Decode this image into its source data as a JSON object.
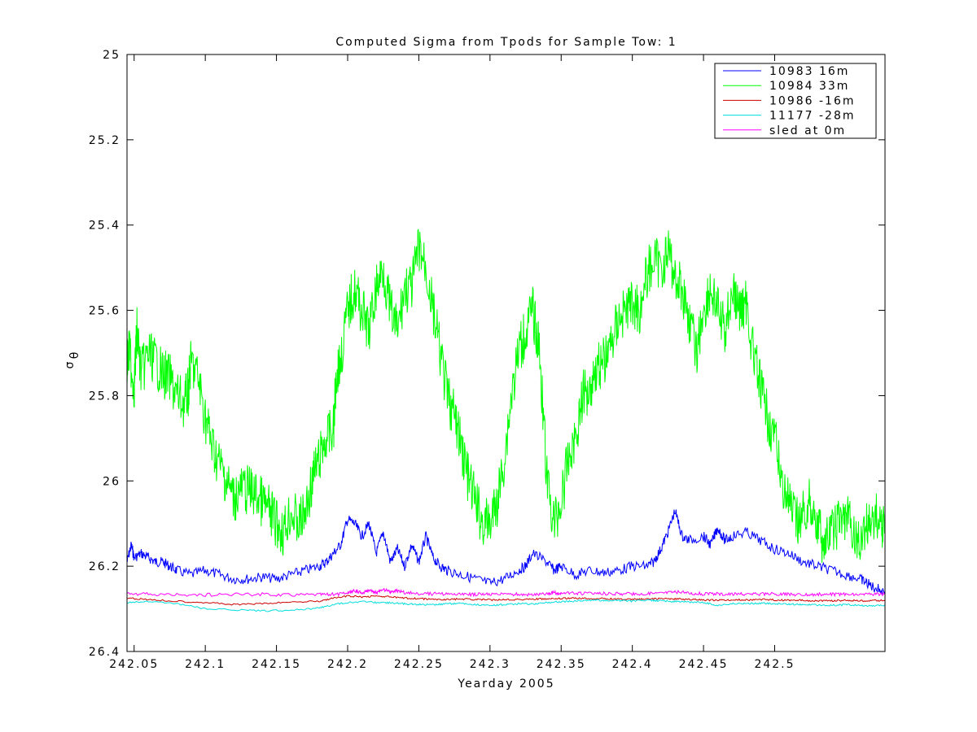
{
  "chart_data": {
    "type": "line",
    "title": "Computed Sigma from Tpods for Sample Tow: 1",
    "xlabel": "Yearday 2005",
    "ylabel": "σ",
    "ylabel_subscript": "θ",
    "xlim": [
      242.045,
      242.5775
    ],
    "ylim": [
      25,
      26.4
    ],
    "y_reversed": true,
    "grid": false,
    "legend_position": "top-right",
    "x_ticks": [
      242.05,
      242.1,
      242.15,
      242.2,
      242.25,
      242.3,
      242.35,
      242.4,
      242.45,
      242.5
    ],
    "x_tick_labels": [
      "242.05",
      "242.1",
      "242.15",
      "242.2",
      "242.25",
      "242.3",
      "242.35",
      "242.4",
      "242.45",
      "242.5"
    ],
    "y_ticks": [
      25,
      25.2,
      25.4,
      25.6,
      25.8,
      26,
      26.2,
      26.4
    ],
    "y_tick_labels": [
      "25",
      "25.2",
      "25.4",
      "25.6",
      "25.8",
      "26",
      "26.2",
      "26.4"
    ],
    "series": [
      {
        "name": "10983 16m",
        "color": "#0000ff",
        "x": [
          242.045,
          242.048,
          242.05,
          242.055,
          242.06,
          242.065,
          242.07,
          242.075,
          242.08,
          242.09,
          242.1,
          242.11,
          242.12,
          242.13,
          242.14,
          242.15,
          242.16,
          242.17,
          242.18,
          242.185,
          242.19,
          242.195,
          242.2,
          242.205,
          242.21,
          242.215,
          242.22,
          242.225,
          242.23,
          242.235,
          242.24,
          242.245,
          242.25,
          242.255,
          242.26,
          242.265,
          242.27,
          242.28,
          242.29,
          242.3,
          242.31,
          242.32,
          242.325,
          242.33,
          242.34,
          242.345,
          242.35,
          242.36,
          242.37,
          242.38,
          242.39,
          242.4,
          242.41,
          242.415,
          242.42,
          242.425,
          242.43,
          242.435,
          242.44,
          242.45,
          242.455,
          242.46,
          242.465,
          242.47,
          242.48,
          242.49,
          242.5,
          242.51,
          242.52,
          242.53,
          242.54,
          242.55,
          242.56,
          242.565,
          242.57,
          242.5775
        ],
        "y": [
          26.19,
          26.15,
          26.18,
          26.17,
          26.18,
          26.19,
          26.19,
          26.2,
          26.21,
          26.22,
          26.21,
          26.22,
          26.23,
          26.23,
          26.225,
          26.23,
          26.22,
          26.21,
          26.2,
          26.19,
          26.17,
          26.15,
          26.09,
          26.1,
          26.13,
          26.1,
          26.17,
          26.12,
          26.19,
          26.16,
          26.2,
          26.15,
          26.19,
          26.13,
          26.18,
          26.2,
          26.21,
          26.22,
          26.23,
          26.24,
          26.23,
          26.21,
          26.2,
          26.17,
          26.19,
          26.21,
          26.2,
          26.22,
          26.21,
          26.215,
          26.21,
          26.2,
          26.2,
          26.19,
          26.16,
          26.12,
          26.07,
          26.13,
          26.14,
          26.13,
          26.15,
          26.11,
          26.14,
          26.13,
          26.12,
          26.14,
          26.16,
          26.17,
          26.19,
          26.2,
          26.21,
          26.22,
          26.23,
          26.24,
          26.25,
          26.26
        ]
      },
      {
        "name": "10984 33m",
        "color": "#00ff00",
        "x": [
          242.045,
          242.047,
          242.05,
          242.052,
          242.055,
          242.06,
          242.065,
          242.07,
          242.075,
          242.08,
          242.085,
          242.088,
          242.09,
          242.095,
          242.1,
          242.105,
          242.11,
          242.115,
          242.12,
          242.125,
          242.13,
          242.135,
          242.14,
          242.145,
          242.15,
          242.155,
          242.16,
          242.165,
          242.17,
          242.175,
          242.18,
          242.185,
          242.19,
          242.192,
          242.195,
          242.2,
          242.205,
          242.21,
          242.215,
          242.22,
          242.225,
          242.23,
          242.235,
          242.24,
          242.245,
          242.25,
          242.255,
          242.26,
          242.265,
          242.27,
          242.275,
          242.28,
          242.285,
          242.29,
          242.295,
          242.3,
          242.305,
          242.31,
          242.315,
          242.32,
          242.325,
          242.33,
          242.335,
          242.34,
          242.345,
          242.35,
          242.355,
          242.36,
          242.365,
          242.37,
          242.375,
          242.38,
          242.385,
          242.39,
          242.395,
          242.4,
          242.405,
          242.41,
          242.415,
          242.42,
          242.425,
          242.43,
          242.435,
          242.44,
          242.445,
          242.45,
          242.455,
          242.46,
          242.465,
          242.47,
          242.475,
          242.48,
          242.485,
          242.49,
          242.495,
          242.5,
          242.505,
          242.51,
          242.515,
          242.52,
          242.525,
          242.53,
          242.535,
          242.54,
          242.545,
          242.55,
          242.555,
          242.56,
          242.565,
          242.57,
          242.575,
          242.5775
        ],
        "y": [
          25.72,
          25.7,
          25.78,
          25.65,
          25.75,
          25.7,
          25.72,
          25.75,
          25.76,
          25.8,
          25.82,
          25.79,
          25.72,
          25.76,
          25.85,
          25.92,
          25.96,
          26.0,
          26.04,
          26.02,
          26.02,
          26.03,
          26.05,
          26.07,
          26.1,
          26.12,
          26.07,
          26.1,
          26.08,
          26.0,
          25.95,
          25.9,
          25.88,
          25.75,
          25.72,
          25.6,
          25.55,
          25.6,
          25.65,
          25.55,
          25.5,
          25.6,
          25.65,
          25.55,
          25.55,
          25.45,
          25.5,
          25.6,
          25.7,
          25.8,
          25.85,
          25.92,
          26.0,
          26.05,
          26.1,
          26.1,
          26.05,
          25.95,
          25.8,
          25.7,
          25.65,
          25.6,
          25.7,
          26.0,
          26.1,
          26.05,
          25.95,
          25.9,
          25.8,
          25.78,
          25.73,
          25.72,
          25.68,
          25.62,
          25.6,
          25.58,
          25.6,
          25.52,
          25.48,
          25.5,
          25.46,
          25.52,
          25.55,
          25.62,
          25.7,
          25.6,
          25.55,
          25.6,
          25.65,
          25.55,
          25.6,
          25.58,
          25.7,
          25.78,
          25.85,
          25.9,
          26.0,
          26.05,
          26.1,
          26.08,
          26.05,
          26.1,
          26.15,
          26.12,
          26.1,
          26.08,
          26.12,
          26.15,
          26.1,
          26.08,
          26.1,
          26.1
        ]
      },
      {
        "name": "10986 -16m",
        "color": "#cc0000",
        "x": [
          242.045,
          242.06,
          242.08,
          242.1,
          242.12,
          242.14,
          242.16,
          242.18,
          242.19,
          242.2,
          242.21,
          242.22,
          242.23,
          242.24,
          242.25,
          242.26,
          242.27,
          242.28,
          242.29,
          242.3,
          242.31,
          242.32,
          242.33,
          242.34,
          242.35,
          242.36,
          242.37,
          242.38,
          242.39,
          242.4,
          242.41,
          242.42,
          242.43,
          242.44,
          242.45,
          242.46,
          242.47,
          242.48,
          242.49,
          242.5,
          242.51,
          242.52,
          242.53,
          242.54,
          242.55,
          242.56,
          242.57,
          242.5775
        ],
        "y": [
          26.275,
          26.278,
          26.282,
          26.285,
          26.29,
          26.288,
          26.284,
          26.282,
          26.275,
          26.27,
          26.272,
          26.27,
          26.272,
          26.275,
          26.276,
          26.278,
          26.278,
          26.277,
          26.278,
          26.279,
          26.278,
          26.278,
          26.277,
          26.277,
          26.276,
          26.275,
          26.276,
          26.276,
          26.277,
          26.278,
          26.277,
          26.276,
          26.277,
          26.278,
          26.279,
          26.28,
          26.279,
          26.279,
          26.278,
          26.279,
          26.28,
          26.28,
          26.281,
          26.281,
          26.28,
          26.281,
          26.281,
          26.28
        ]
      },
      {
        "name": "11177 -28m",
        "color": "#00dddd",
        "x": [
          242.045,
          242.06,
          242.08,
          242.1,
          242.12,
          242.14,
          242.16,
          242.18,
          242.19,
          242.2,
          242.21,
          242.22,
          242.23,
          242.24,
          242.25,
          242.26,
          242.27,
          242.28,
          242.29,
          242.3,
          242.31,
          242.32,
          242.33,
          242.34,
          242.35,
          242.36,
          242.37,
          242.38,
          242.39,
          242.4,
          242.41,
          242.42,
          242.43,
          242.44,
          242.45,
          242.46,
          242.47,
          242.48,
          242.49,
          242.5,
          242.51,
          242.52,
          242.53,
          242.54,
          242.55,
          242.56,
          242.57,
          242.5775
        ],
        "y": [
          26.285,
          26.283,
          26.288,
          26.3,
          26.302,
          26.305,
          26.303,
          26.298,
          26.29,
          26.285,
          26.283,
          26.285,
          26.286,
          26.288,
          26.29,
          26.29,
          26.288,
          26.287,
          26.29,
          26.292,
          26.29,
          26.288,
          26.289,
          26.285,
          26.283,
          26.282,
          26.28,
          26.28,
          26.281,
          26.282,
          26.28,
          26.281,
          26.283,
          26.284,
          26.285,
          26.292,
          26.288,
          26.288,
          26.287,
          26.288,
          26.289,
          26.29,
          26.291,
          26.292,
          26.29,
          26.292,
          26.293,
          26.292
        ]
      },
      {
        "name": "sled at 0m",
        "color": "#ff00ff",
        "x": [
          242.045,
          242.06,
          242.08,
          242.1,
          242.12,
          242.14,
          242.16,
          242.18,
          242.19,
          242.2,
          242.205,
          242.21,
          242.215,
          242.22,
          242.225,
          242.23,
          242.235,
          242.24,
          242.25,
          242.26,
          242.27,
          242.28,
          242.29,
          242.3,
          242.31,
          242.32,
          242.33,
          242.34,
          242.345,
          242.35,
          242.36,
          242.37,
          242.38,
          242.39,
          242.4,
          242.41,
          242.42,
          242.43,
          242.44,
          242.45,
          242.46,
          242.47,
          242.48,
          242.49,
          242.5,
          242.51,
          242.52,
          242.53,
          242.54,
          242.55,
          242.56,
          242.57,
          242.5775
        ],
        "y": [
          26.265,
          26.266,
          26.267,
          26.267,
          26.266,
          26.266,
          26.267,
          26.266,
          26.266,
          26.263,
          26.258,
          26.262,
          26.257,
          26.262,
          26.255,
          26.26,
          26.258,
          26.262,
          26.264,
          26.265,
          26.265,
          26.266,
          26.266,
          26.266,
          26.266,
          26.266,
          26.266,
          26.265,
          26.262,
          26.264,
          26.263,
          26.264,
          26.264,
          26.265,
          26.265,
          26.264,
          26.263,
          26.26,
          26.263,
          26.265,
          26.265,
          26.265,
          26.266,
          26.265,
          26.265,
          26.266,
          26.266,
          26.266,
          26.266,
          26.266,
          26.266,
          26.266,
          26.266
        ]
      }
    ]
  }
}
